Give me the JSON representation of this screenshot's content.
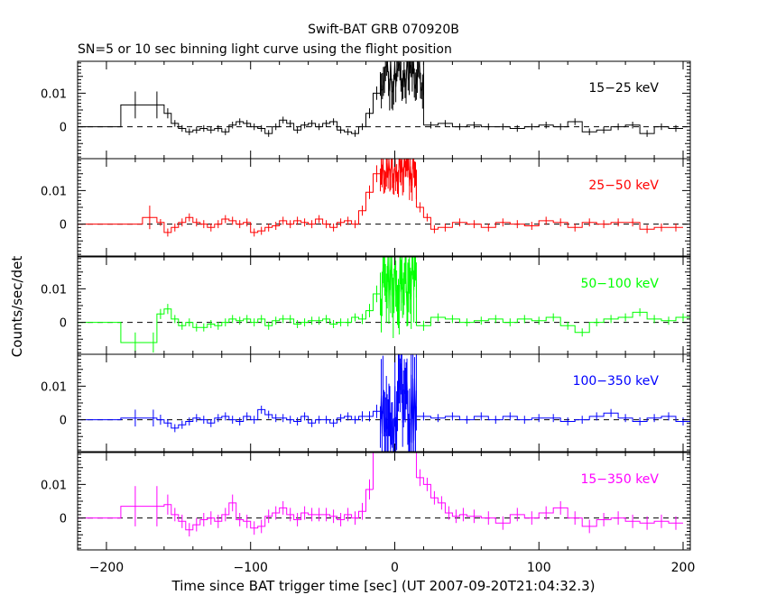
{
  "chart_data": {
    "type": "line",
    "title": "Swift-BAT GRB 070920B",
    "subtitle": "SN=5 or 10 sec binning light curve using the flight position",
    "xlabel": "Time since BAT trigger time [sec] (UT 2007-09-20T21:04:32.3)",
    "ylabel": "Counts/sec/det",
    "xlim": [
      -220,
      205
    ],
    "ylim": [
      -0.0095,
      0.0195
    ],
    "x_ticks": [
      -200,
      -100,
      0,
      100,
      200
    ],
    "x_tick_labels": [
      "−200",
      "−100",
      "0",
      "100",
      "200"
    ],
    "y_ticks": [
      0,
      0.01
    ],
    "y_tick_labels": [
      "0",
      "0.01"
    ],
    "colors": {
      "15-25": "#000000",
      "25-50": "#ff0000",
      "50-100": "#00ff00",
      "100-350": "#0000ff",
      "15-350": "#ff00ff",
      "axes": "#000000"
    },
    "panels": [
      {
        "name": "15-25",
        "label": "15−25 keV",
        "color": "#000000",
        "pre_edges": [
          -220,
          -190,
          -170,
          -160,
          -155,
          -150,
          -145,
          -140,
          -135,
          -130,
          -125,
          -120,
          -115,
          -110,
          -105,
          -100,
          -95,
          -90,
          -85,
          -80,
          -75,
          -70,
          -65,
          -60,
          -55,
          -50,
          -45,
          -40,
          -35,
          -30,
          -25,
          -20,
          -15,
          -10
        ],
        "pre_values": [
          0.0,
          0.0065,
          0.0065,
          0.004,
          0.001,
          -0.0005,
          -0.0015,
          -0.001,
          -0.0005,
          -0.001,
          -0.0005,
          -0.0015,
          0.0005,
          0.0015,
          0.001,
          0.0,
          -0.0005,
          -0.002,
          0.0,
          0.002,
          0.001,
          -0.001,
          0.0005,
          0.001,
          0.0,
          0.001,
          0.0015,
          -0.001,
          -0.0015,
          -0.002,
          0.0,
          0.004,
          0.01
        ],
        "pre_errors": [
          0.0,
          0.004,
          0.004,
          0.0015,
          0.001,
          0.001,
          0.001,
          0.001,
          0.001,
          0.001,
          0.001,
          0.001,
          0.001,
          0.001,
          0.001,
          0.001,
          0.001,
          0.001,
          0.001,
          0.001,
          0.001,
          0.001,
          0.001,
          0.001,
          0.001,
          0.001,
          0.001,
          0.001,
          0.001,
          0.001,
          0.001,
          0.0015,
          0.002
        ],
        "post_edges": [
          20,
          30,
          40,
          50,
          60,
          70,
          80,
          90,
          100,
          110,
          120,
          130,
          140,
          150,
          160,
          170,
          180,
          190,
          200
        ],
        "post_values": [
          0.0005,
          0.001,
          0.0,
          0.0005,
          0.0,
          0.0,
          -0.0005,
          0.0,
          0.0005,
          0.0,
          0.0015,
          -0.0015,
          -0.001,
          0.0,
          0.0005,
          -0.002,
          0.0,
          -0.0005
        ],
        "post_errors": [
          0.001,
          0.001,
          0.001,
          0.001,
          0.001,
          0.001,
          0.001,
          0.001,
          0.001,
          0.001,
          0.001,
          0.001,
          0.001,
          0.001,
          0.001,
          0.001,
          0.001,
          0.001
        ],
        "burst_level": 0.016,
        "burst_spread": 0.006,
        "burst_seed": 11
      },
      {
        "name": "25-50",
        "label": "25−50 keV",
        "color": "#ff0000",
        "pre_edges": [
          -220,
          -175,
          -165,
          -160,
          -155,
          -150,
          -145,
          -140,
          -135,
          -130,
          -125,
          -120,
          -115,
          -110,
          -105,
          -100,
          -95,
          -90,
          -85,
          -80,
          -75,
          -70,
          -65,
          -60,
          -55,
          -50,
          -45,
          -40,
          -35,
          -30,
          -25,
          -20,
          -15,
          -10
        ],
        "pre_values": [
          0.0,
          0.002,
          0.0005,
          -0.0025,
          -0.001,
          0.0005,
          0.002,
          0.0005,
          0.0,
          -0.001,
          0.0,
          0.0015,
          0.001,
          0.0,
          0.0005,
          -0.0025,
          -0.002,
          -0.001,
          -0.0005,
          0.001,
          0.0,
          0.001,
          0.0005,
          0.0,
          0.0015,
          0.0,
          -0.001,
          0.0005,
          0.001,
          0.0,
          0.004,
          0.0095,
          0.015
        ],
        "pre_errors": [
          0.0,
          0.0035,
          0.001,
          0.0012,
          0.0012,
          0.0012,
          0.0012,
          0.0012,
          0.0012,
          0.0012,
          0.0012,
          0.0012,
          0.0012,
          0.0012,
          0.0012,
          0.0012,
          0.0012,
          0.0012,
          0.0012,
          0.0012,
          0.0012,
          0.0012,
          0.0012,
          0.0012,
          0.0012,
          0.0012,
          0.0012,
          0.0012,
          0.0012,
          0.0012,
          0.0015,
          0.002,
          0.0025
        ],
        "post_edges": [
          15,
          20,
          25,
          30,
          40,
          50,
          60,
          70,
          80,
          90,
          100,
          110,
          120,
          130,
          140,
          150,
          160,
          170,
          180,
          190,
          200
        ],
        "post_values": [
          0.005,
          0.002,
          -0.0015,
          -0.001,
          0.0005,
          0.0,
          -0.001,
          0.0005,
          0.0,
          -0.0005,
          0.001,
          0.0005,
          -0.001,
          0.0005,
          0.0,
          0.0005,
          0.0005,
          -0.0015,
          -0.001,
          -0.001
        ],
        "post_errors": [
          0.0015,
          0.0012,
          0.0012,
          0.0012,
          0.0012,
          0.0012,
          0.0012,
          0.0012,
          0.0012,
          0.0012,
          0.0012,
          0.0012,
          0.0012,
          0.0012,
          0.0012,
          0.0012,
          0.0012,
          0.0012,
          0.0012,
          0.0012
        ],
        "burst_level": 0.016,
        "burst_spread": 0.005,
        "burst_seed": 23
      },
      {
        "name": "50-100",
        "label": "50−100 keV",
        "color": "#00ff00",
        "pre_edges": [
          -220,
          -190,
          -170,
          -165,
          -160,
          -155,
          -150,
          -145,
          -140,
          -135,
          -130,
          -125,
          -120,
          -115,
          -110,
          -105,
          -100,
          -95,
          -90,
          -85,
          -80,
          -75,
          -70,
          -65,
          -60,
          -55,
          -50,
          -45,
          -40,
          -35,
          -30,
          -25,
          -20,
          -15,
          -10
        ],
        "pre_values": [
          0.0,
          -0.006,
          -0.006,
          0.0025,
          0.004,
          0.001,
          -0.001,
          0.0,
          -0.0015,
          -0.0015,
          -0.0005,
          -0.001,
          0.0,
          0.001,
          0.0005,
          0.001,
          0.0,
          0.001,
          -0.001,
          0.0005,
          0.001,
          0.001,
          -0.0005,
          0.0,
          0.0005,
          0.0005,
          0.001,
          -0.0005,
          0.0,
          0.0,
          0.0015,
          0.001,
          0.0035,
          0.0085
        ],
        "pre_errors": [
          0.0,
          0.003,
          0.003,
          0.0015,
          0.0015,
          0.0012,
          0.0012,
          0.0012,
          0.0012,
          0.0012,
          0.0012,
          0.0012,
          0.0012,
          0.0012,
          0.0012,
          0.0012,
          0.0012,
          0.0012,
          0.0012,
          0.0012,
          0.0012,
          0.0012,
          0.0012,
          0.0012,
          0.0012,
          0.0012,
          0.0012,
          0.0012,
          0.0012,
          0.0012,
          0.0012,
          0.0015,
          0.002,
          0.0025
        ],
        "post_edges": [
          15,
          25,
          35,
          45,
          55,
          65,
          75,
          85,
          95,
          105,
          115,
          125,
          135,
          145,
          155,
          165,
          175,
          185,
          195,
          205
        ],
        "post_values": [
          -0.001,
          0.0015,
          0.001,
          0.0,
          0.0005,
          0.001,
          0.0,
          0.001,
          0.0005,
          0.0015,
          -0.001,
          -0.003,
          0.0,
          0.001,
          0.0015,
          0.003,
          0.001,
          0.0005,
          0.0015
        ],
        "post_errors": [
          0.0015,
          0.0012,
          0.0012,
          0.0012,
          0.0012,
          0.0012,
          0.0012,
          0.0012,
          0.0012,
          0.0012,
          0.0012,
          0.0012,
          0.0012,
          0.0012,
          0.0012,
          0.0012,
          0.0012,
          0.0012,
          0.0012
        ],
        "burst_level": 0.012,
        "burst_spread": 0.01,
        "burst_seed": 37
      },
      {
        "name": "100-350",
        "label": "100−350 keV",
        "color": "#0000ff",
        "pre_edges": [
          -220,
          -190,
          -170,
          -165,
          -160,
          -155,
          -150,
          -145,
          -140,
          -135,
          -130,
          -125,
          -120,
          -115,
          -110,
          -105,
          -100,
          -95,
          -90,
          -85,
          -80,
          -75,
          -70,
          -65,
          -60,
          -55,
          -50,
          -45,
          -40,
          -35,
          -30,
          -25,
          -20,
          -15,
          -10
        ],
        "pre_values": [
          0.0,
          0.0005,
          0.0005,
          0.0,
          -0.001,
          -0.0025,
          -0.0015,
          -0.0005,
          0.0005,
          0.0,
          -0.001,
          0.0005,
          0.001,
          0.0,
          -0.0005,
          0.001,
          0.0,
          0.003,
          0.0015,
          0.0005,
          0.0005,
          0.0,
          -0.0005,
          0.001,
          -0.001,
          0.0,
          0.0,
          -0.001,
          0.0005,
          0.001,
          0.0,
          0.001,
          0.001,
          0.0025
        ],
        "pre_errors": [
          0.0,
          0.0025,
          0.0025,
          0.0015,
          0.0012,
          0.0012,
          0.0012,
          0.0012,
          0.0012,
          0.0012,
          0.0012,
          0.0012,
          0.0012,
          0.0012,
          0.0012,
          0.0012,
          0.0012,
          0.0012,
          0.0012,
          0.0012,
          0.0012,
          0.0012,
          0.0012,
          0.0012,
          0.0012,
          0.0012,
          0.0012,
          0.0012,
          0.0012,
          0.0012,
          0.0012,
          0.0015,
          0.0015,
          0.002
        ],
        "post_edges": [
          15,
          25,
          35,
          45,
          55,
          65,
          75,
          85,
          95,
          105,
          115,
          125,
          135,
          145,
          155,
          165,
          175,
          185,
          195,
          205
        ],
        "post_values": [
          0.001,
          0.0005,
          0.001,
          0.0,
          0.001,
          0.0,
          0.001,
          0.0,
          0.0005,
          0.0005,
          -0.0005,
          0.0,
          0.001,
          0.002,
          0.0005,
          -0.0005,
          0.0005,
          0.001,
          -0.0005
        ],
        "post_errors": [
          0.0012,
          0.0012,
          0.0012,
          0.0012,
          0.0012,
          0.0012,
          0.0012,
          0.0012,
          0.0012,
          0.0012,
          0.0012,
          0.0012,
          0.0012,
          0.0012,
          0.0012,
          0.0012,
          0.0012,
          0.0012,
          0.0012
        ],
        "burst_level": 0.004,
        "burst_spread": 0.013,
        "burst_seed": 53
      },
      {
        "name": "15-350",
        "label": "15−350 keV",
        "color": "#ff00ff",
        "pre_edges": [
          -220,
          -190,
          -170,
          -160,
          -155,
          -150,
          -145,
          -140,
          -135,
          -130,
          -125,
          -120,
          -115,
          -110,
          -105,
          -100,
          -95,
          -90,
          -85,
          -80,
          -75,
          -70,
          -65,
          -60,
          -55,
          -50,
          -45,
          -40,
          -35,
          -30,
          -25,
          -20,
          -15
        ],
        "pre_values": [
          0.0,
          0.0035,
          0.0035,
          0.004,
          0.001,
          -0.001,
          -0.0035,
          -0.002,
          -0.0005,
          0.0,
          -0.001,
          0.001,
          0.0045,
          -0.0005,
          -0.001,
          -0.003,
          -0.0025,
          0.0005,
          0.0015,
          0.003,
          0.001,
          -0.0005,
          0.0015,
          0.001,
          0.001,
          0.001,
          0.0005,
          -0.0005,
          0.001,
          0.0,
          0.002,
          0.0085
        ],
        "pre_errors": [
          0.0,
          0.006,
          0.006,
          0.003,
          0.002,
          0.002,
          0.002,
          0.002,
          0.002,
          0.002,
          0.002,
          0.002,
          0.0025,
          0.002,
          0.002,
          0.002,
          0.002,
          0.002,
          0.002,
          0.002,
          0.002,
          0.002,
          0.002,
          0.002,
          0.002,
          0.002,
          0.002,
          0.002,
          0.002,
          0.002,
          0.0025,
          0.003
        ],
        "post_edges": [
          15,
          20,
          25,
          30,
          35,
          40,
          45,
          50,
          60,
          70,
          80,
          90,
          100,
          110,
          120,
          130,
          140,
          150,
          160,
          170,
          180,
          190,
          200
        ],
        "post_values": [
          0.012,
          0.01,
          0.006,
          0.0045,
          0.0015,
          0.0005,
          0.001,
          0.0005,
          0.0,
          -0.0015,
          0.001,
          0.0,
          0.0015,
          0.003,
          0.0,
          -0.0025,
          -0.0005,
          0.0,
          -0.001,
          -0.0015,
          -0.001,
          -0.0015
        ],
        "post_errors": [
          0.0025,
          0.002,
          0.002,
          0.002,
          0.002,
          0.002,
          0.002,
          0.002,
          0.002,
          0.002,
          0.002,
          0.002,
          0.002,
          0.002,
          0.002,
          0.002,
          0.002,
          0.002,
          0.002,
          0.002,
          0.002,
          0.002
        ],
        "burst_level": 0.022,
        "burst_spread": 0.0,
        "burst_seed": 71
      }
    ]
  }
}
